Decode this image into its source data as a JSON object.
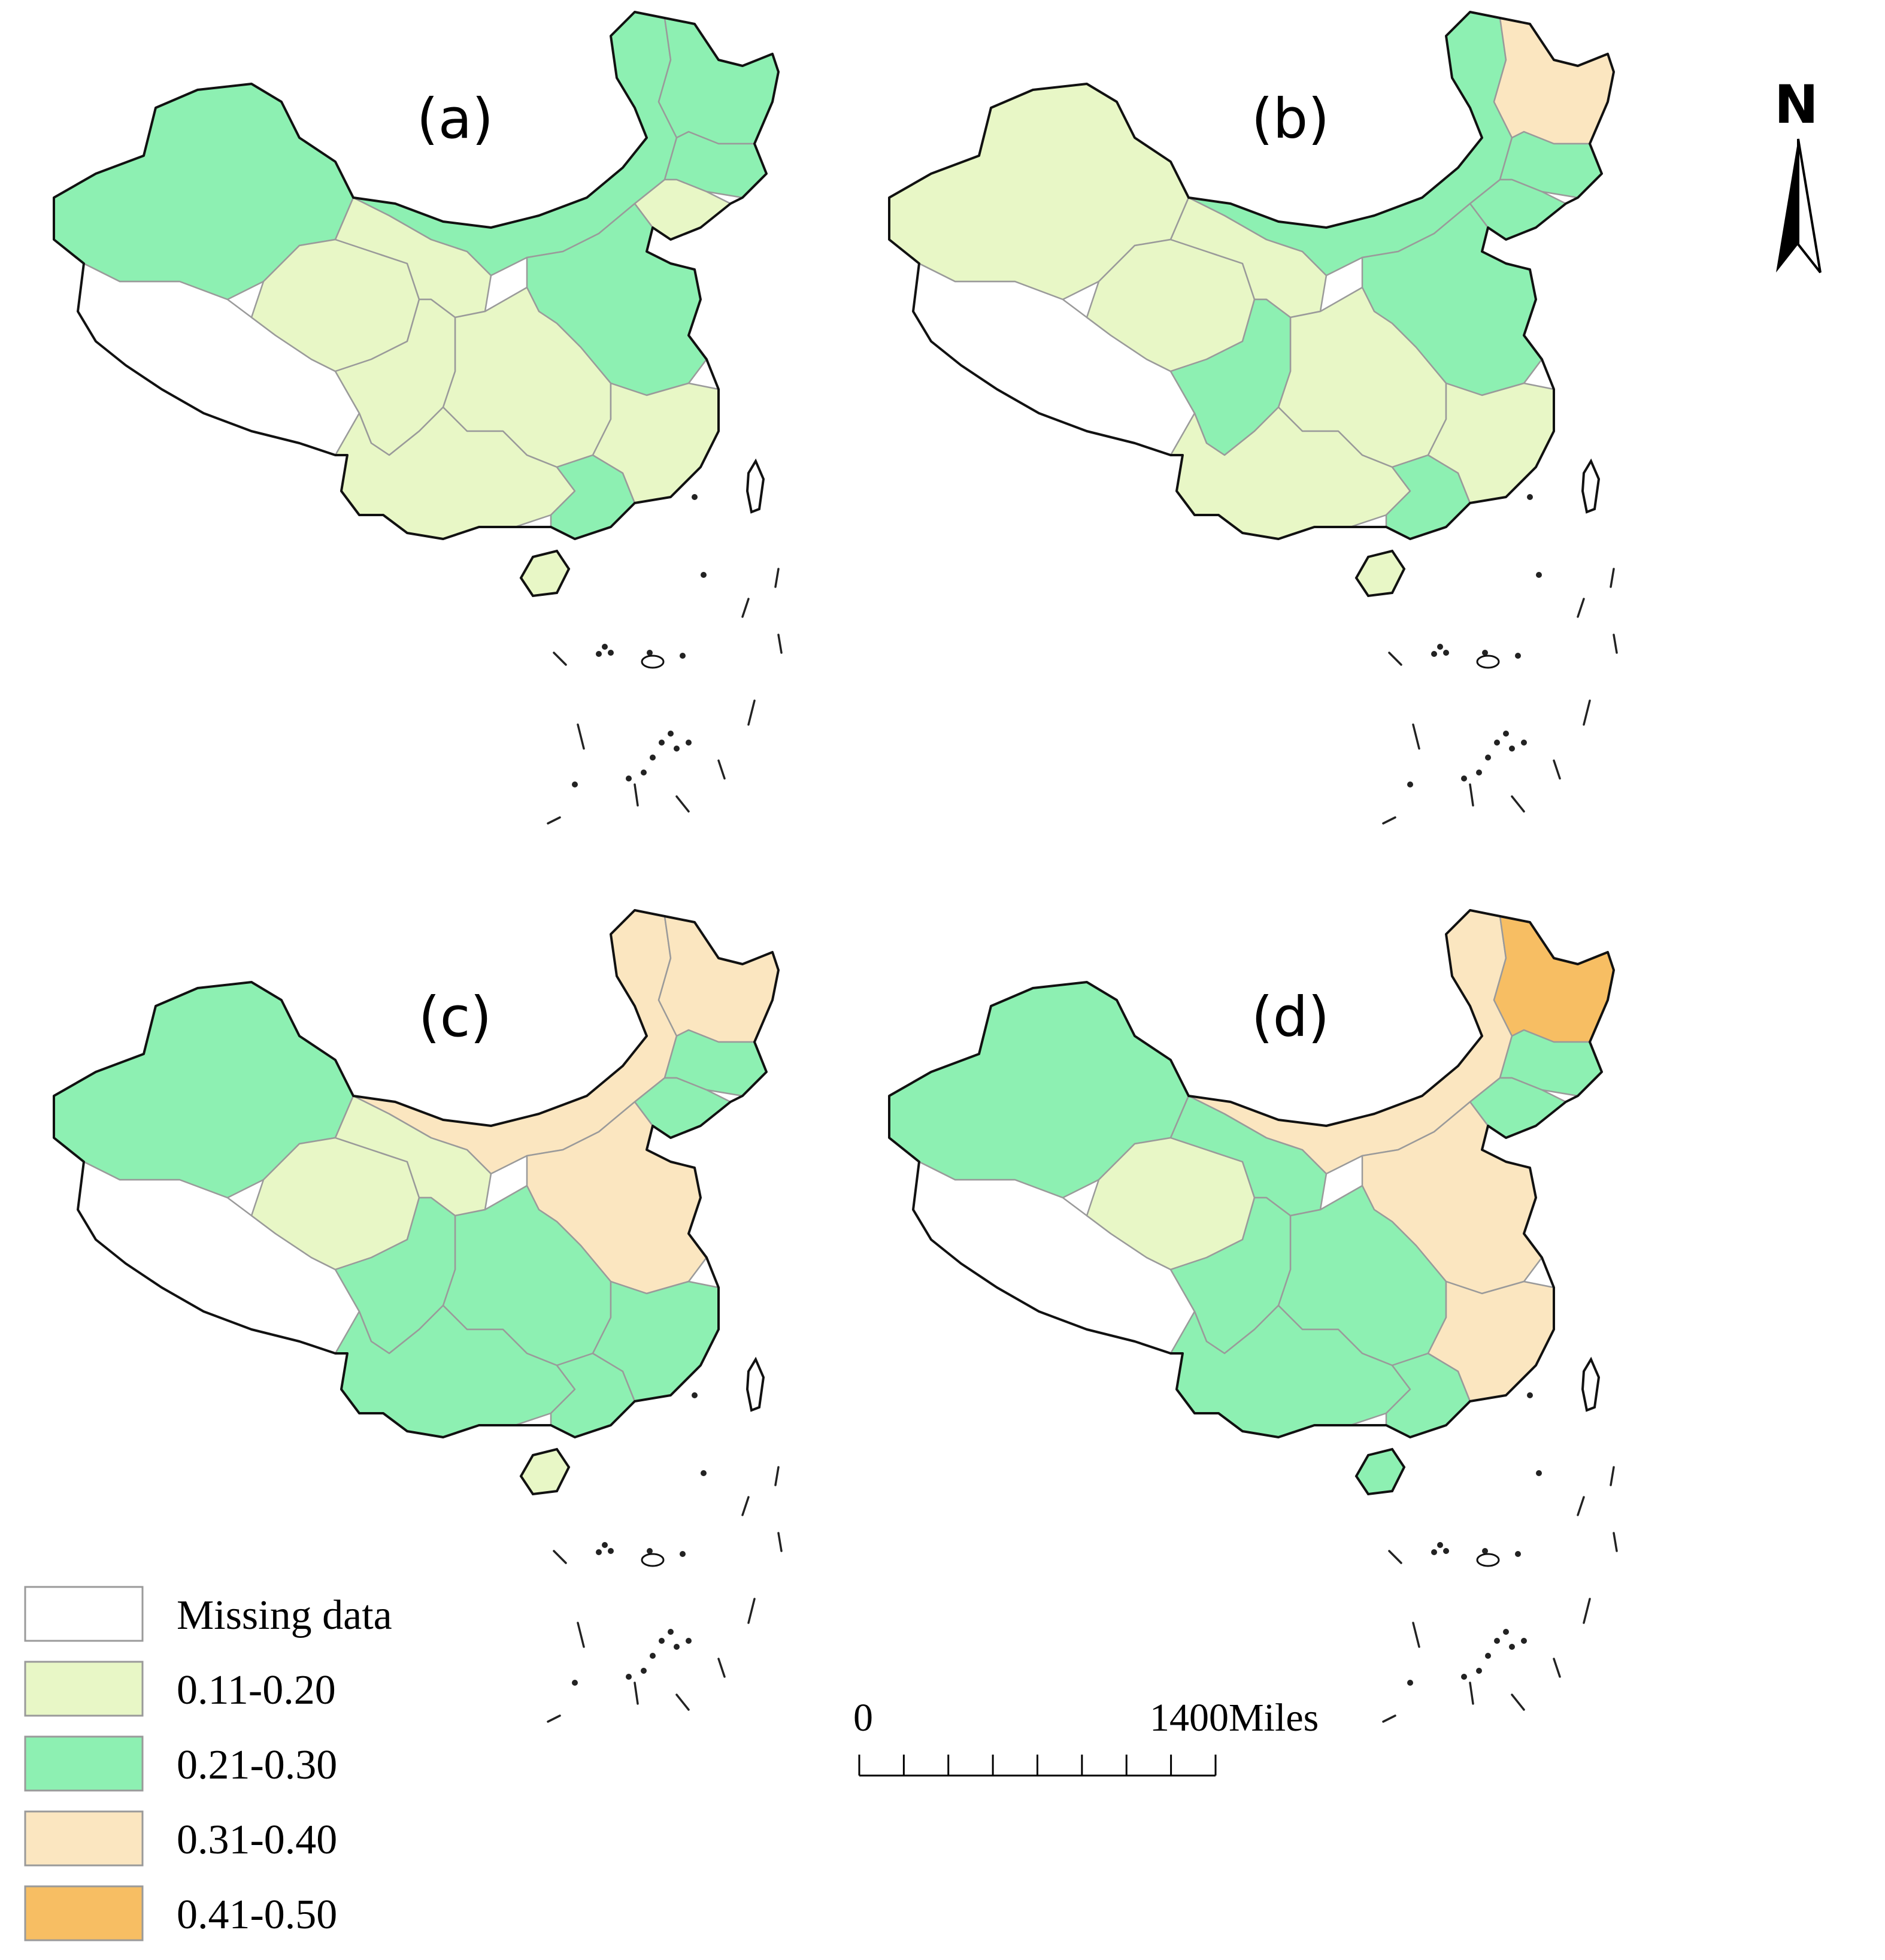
{
  "colors": {
    "missing": "#ffffff",
    "c1": "#e8f7c6",
    "c2": "#8df0b2",
    "c3": "#fbe6c0",
    "c4": "#f7be63"
  },
  "panels": [
    {
      "label": "(a)",
      "classes": {
        "xinjiang": "c2",
        "tibet": "missing",
        "qinghai": "c1",
        "gansu": "c1",
        "inner_mongolia": "c2",
        "heilongjiang": "c2",
        "jilin": "c2",
        "liaoning": "c1",
        "north_china": "c2",
        "central": "c1",
        "sichuan": "c1",
        "south": "c1",
        "guangdong": "c2",
        "east_coast": "c1",
        "hainan": "c1"
      }
    },
    {
      "label": "(b)",
      "classes": {
        "xinjiang": "c1",
        "tibet": "missing",
        "qinghai": "c1",
        "gansu": "c1",
        "inner_mongolia": "c2",
        "heilongjiang": "c3",
        "jilin": "c2",
        "liaoning": "c2",
        "north_china": "c2",
        "central": "c1",
        "sichuan": "c2",
        "south": "c1",
        "guangdong": "c2",
        "east_coast": "c1",
        "hainan": "c1"
      }
    },
    {
      "label": "(c)",
      "classes": {
        "xinjiang": "c2",
        "tibet": "missing",
        "qinghai": "c1",
        "gansu": "c1",
        "inner_mongolia": "c3",
        "heilongjiang": "c3",
        "jilin": "c2",
        "liaoning": "c2",
        "north_china": "c3",
        "central": "c2",
        "sichuan": "c2",
        "south": "c2",
        "guangdong": "c2",
        "east_coast": "c2",
        "hainan": "c1"
      }
    },
    {
      "label": "(d)",
      "classes": {
        "xinjiang": "c2",
        "tibet": "missing",
        "qinghai": "c1",
        "gansu": "c2",
        "inner_mongolia": "c3",
        "heilongjiang": "c4",
        "jilin": "c2",
        "liaoning": "c2",
        "north_china": "c3",
        "central": "c2",
        "sichuan": "c2",
        "south": "c2",
        "guangdong": "c2",
        "east_coast": "c3",
        "hainan": "c2"
      }
    }
  ],
  "legend": [
    {
      "key": "missing",
      "label": "Missing data"
    },
    {
      "key": "c1",
      "label": "0.11-0.20"
    },
    {
      "key": "c2",
      "label": "0.21-0.30"
    },
    {
      "key": "c3",
      "label": "0.31-0.40"
    },
    {
      "key": "c4",
      "label": "0.41-0.50"
    }
  ],
  "scale_bar": {
    "start": "0",
    "end": "1400Miles"
  },
  "north_arrow": {
    "label": "N",
    "icon": "north-arrow-icon"
  }
}
